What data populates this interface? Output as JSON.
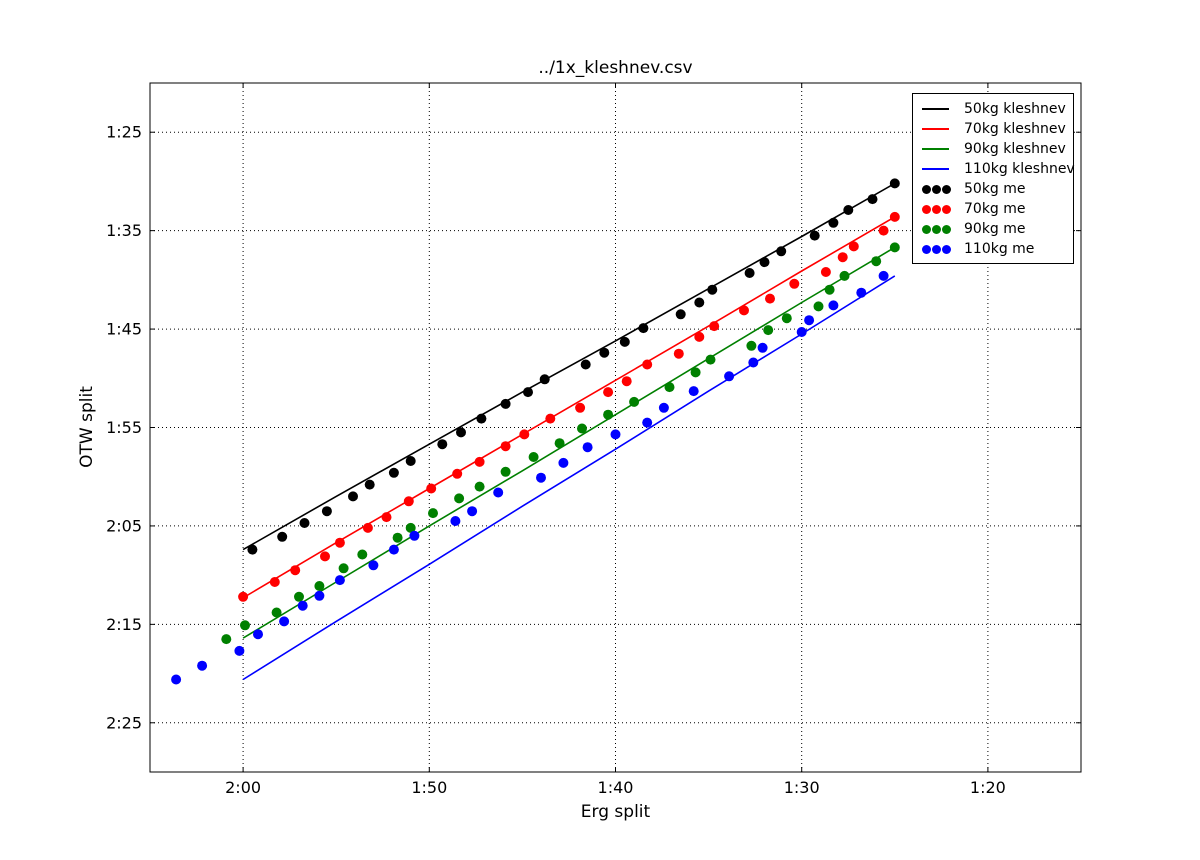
{
  "figure": {
    "background": "#ffffff",
    "frame_color": "#000000"
  },
  "chart_data": {
    "type": "line+scatter",
    "title": "../1x_kleshnev.csv",
    "xlabel": "Erg split",
    "ylabel": "OTW split",
    "x_axis": {
      "inverted": true,
      "units": "m:ss",
      "range_seconds": [
        125,
        75
      ],
      "tick_seconds": [
        120,
        110,
        100,
        90,
        80
      ],
      "tick_labels": [
        "2:00",
        "1:50",
        "1:40",
        "1:30",
        "1:20"
      ]
    },
    "y_axis": {
      "inverted": true,
      "units": "m:ss",
      "range_seconds": [
        80,
        150
      ],
      "tick_seconds": [
        85,
        95,
        105,
        115,
        125,
        135,
        145
      ],
      "tick_labels": [
        "1:25",
        "1:35",
        "1:45",
        "1:55",
        "2:05",
        "2:15",
        "2:25"
      ]
    },
    "grid": {
      "style": "dotted",
      "color": "#000000"
    },
    "legend_position": "upper-right",
    "series": [
      {
        "name": "50kg kleshnev",
        "kind": "line",
        "color": "#000000",
        "points": [
          [
            120,
            127.4
          ],
          [
            115,
            122.0
          ],
          [
            110,
            116.7
          ],
          [
            105,
            111.4
          ],
          [
            100,
            106.2
          ],
          [
            95,
            100.9
          ],
          [
            90,
            95.6
          ],
          [
            85,
            90.2
          ]
        ]
      },
      {
        "name": "70kg kleshnev",
        "kind": "line",
        "color": "#ff0000",
        "points": [
          [
            120,
            132.3
          ],
          [
            115,
            126.7
          ],
          [
            110,
            121.2
          ],
          [
            105,
            115.7
          ],
          [
            100,
            110.2
          ],
          [
            95,
            104.7
          ],
          [
            90,
            99.1
          ],
          [
            85,
            93.6
          ]
        ]
      },
      {
        "name": "90kg kleshnev",
        "kind": "line",
        "color": "#008000",
        "points": [
          [
            120,
            136.4
          ],
          [
            115,
            130.7
          ],
          [
            110,
            125.0
          ],
          [
            105,
            119.4
          ],
          [
            100,
            113.7
          ],
          [
            95,
            108.0
          ],
          [
            90,
            102.3
          ],
          [
            85,
            96.7
          ]
        ]
      },
      {
        "name": "110kg kleshnev",
        "kind": "line",
        "color": "#0000ff",
        "points": [
          [
            120,
            140.6
          ],
          [
            115,
            134.7
          ],
          [
            110,
            128.9
          ],
          [
            105,
            123.0
          ],
          [
            100,
            117.2
          ],
          [
            95,
            111.3
          ],
          [
            90,
            105.5
          ],
          [
            85,
            99.6
          ]
        ]
      },
      {
        "name": "50kg me",
        "kind": "scatter",
        "color": "#000000",
        "points": [
          [
            119.5,
            127.4
          ],
          [
            117.9,
            126.1
          ],
          [
            116.7,
            124.7
          ],
          [
            115.5,
            123.5
          ],
          [
            114.1,
            122.0
          ],
          [
            113.2,
            120.8
          ],
          [
            111.9,
            119.6
          ],
          [
            111.0,
            118.4
          ],
          [
            109.3,
            116.7
          ],
          [
            108.3,
            115.5
          ],
          [
            107.2,
            114.1
          ],
          [
            105.9,
            112.6
          ],
          [
            104.7,
            111.4
          ],
          [
            103.8,
            110.1
          ],
          [
            101.6,
            108.6
          ],
          [
            100.6,
            107.4
          ],
          [
            99.5,
            106.3
          ],
          [
            98.5,
            104.9
          ],
          [
            96.5,
            103.5
          ],
          [
            95.5,
            102.3
          ],
          [
            94.8,
            101.0
          ],
          [
            92.8,
            99.3
          ],
          [
            92.0,
            98.2
          ],
          [
            91.1,
            97.1
          ],
          [
            89.3,
            95.5
          ],
          [
            88.3,
            94.2
          ],
          [
            87.5,
            92.9
          ],
          [
            86.2,
            91.8
          ],
          [
            85.0,
            90.2
          ]
        ]
      },
      {
        "name": "70kg me",
        "kind": "scatter",
        "color": "#ff0000",
        "points": [
          [
            120.0,
            132.2
          ],
          [
            118.3,
            130.7
          ],
          [
            117.2,
            129.5
          ],
          [
            115.6,
            128.1
          ],
          [
            114.8,
            126.7
          ],
          [
            113.3,
            125.2
          ],
          [
            112.3,
            124.1
          ],
          [
            111.1,
            122.5
          ],
          [
            109.9,
            121.2
          ],
          [
            108.5,
            119.7
          ],
          [
            107.3,
            118.5
          ],
          [
            105.9,
            116.9
          ],
          [
            104.9,
            115.7
          ],
          [
            103.5,
            114.1
          ],
          [
            101.9,
            113.0
          ],
          [
            100.4,
            111.4
          ],
          [
            99.4,
            110.3
          ],
          [
            98.3,
            108.6
          ],
          [
            96.6,
            107.5
          ],
          [
            95.5,
            105.8
          ],
          [
            94.7,
            104.7
          ],
          [
            93.1,
            103.1
          ],
          [
            91.7,
            101.9
          ],
          [
            90.4,
            100.4
          ],
          [
            88.7,
            99.2
          ],
          [
            87.8,
            97.7
          ],
          [
            87.2,
            96.6
          ],
          [
            85.6,
            95.0
          ],
          [
            85.0,
            93.6
          ]
        ]
      },
      {
        "name": "90kg me",
        "kind": "scatter",
        "color": "#008000",
        "points": [
          [
            120.9,
            136.5
          ],
          [
            119.9,
            135.1
          ],
          [
            118.2,
            133.8
          ],
          [
            117.0,
            132.2
          ],
          [
            115.9,
            131.1
          ],
          [
            114.6,
            129.3
          ],
          [
            113.6,
            127.9
          ],
          [
            111.7,
            126.2
          ],
          [
            111.0,
            125.2
          ],
          [
            109.8,
            123.7
          ],
          [
            108.4,
            122.2
          ],
          [
            107.3,
            121.0
          ],
          [
            105.9,
            119.5
          ],
          [
            104.4,
            118.0
          ],
          [
            103.0,
            116.6
          ],
          [
            101.8,
            115.1
          ],
          [
            100.4,
            113.7
          ],
          [
            99.0,
            112.4
          ],
          [
            97.1,
            110.9
          ],
          [
            95.7,
            109.4
          ],
          [
            94.9,
            108.1
          ],
          [
            92.7,
            106.7
          ],
          [
            91.8,
            105.1
          ],
          [
            90.8,
            103.9
          ],
          [
            89.1,
            102.7
          ],
          [
            88.5,
            101.0
          ],
          [
            87.7,
            99.6
          ],
          [
            86.0,
            98.1
          ],
          [
            85.0,
            96.7
          ]
        ]
      },
      {
        "name": "110kg me",
        "kind": "scatter",
        "color": "#0000ff",
        "points": [
          [
            123.6,
            140.6
          ],
          [
            122.2,
            139.2
          ],
          [
            120.2,
            137.7
          ],
          [
            119.2,
            136.0
          ],
          [
            117.8,
            134.7
          ],
          [
            116.8,
            133.1
          ],
          [
            115.9,
            132.1
          ],
          [
            114.8,
            130.5
          ],
          [
            113.0,
            129.0
          ],
          [
            111.9,
            127.4
          ],
          [
            110.8,
            126.0
          ],
          [
            108.6,
            124.5
          ],
          [
            107.7,
            123.5
          ],
          [
            106.3,
            121.6
          ],
          [
            104.0,
            120.1
          ],
          [
            102.8,
            118.6
          ],
          [
            101.5,
            117.0
          ],
          [
            100.0,
            115.7
          ],
          [
            98.3,
            114.5
          ],
          [
            97.4,
            113.0
          ],
          [
            95.8,
            111.3
          ],
          [
            93.9,
            109.8
          ],
          [
            92.6,
            108.4
          ],
          [
            92.1,
            106.9
          ],
          [
            90.0,
            105.3
          ],
          [
            89.6,
            104.1
          ],
          [
            88.3,
            102.6
          ],
          [
            86.8,
            101.3
          ],
          [
            85.6,
            99.6
          ]
        ]
      }
    ]
  }
}
